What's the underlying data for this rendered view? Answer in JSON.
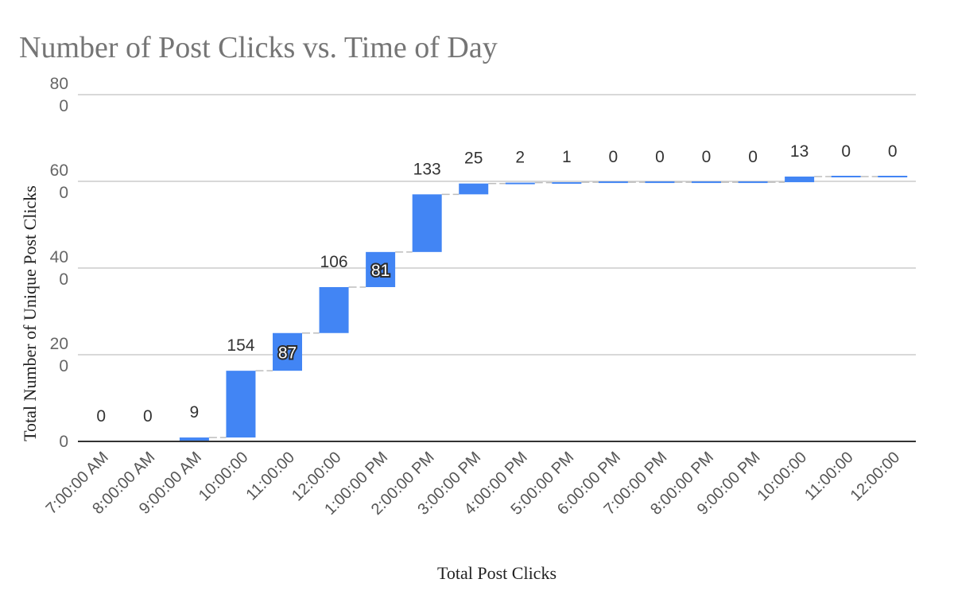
{
  "chart_data": {
    "type": "waterfall",
    "title": "Number of Post Clicks vs. Time of Day",
    "xlabel": "Total Post Clicks",
    "ylabel": "Total Number of Unique Post Clicks",
    "ylim": [
      0,
      800
    ],
    "y_ticks": [
      {
        "value": 0,
        "label": "0"
      },
      {
        "value": 200,
        "label": "20\n0"
      },
      {
        "value": 400,
        "label": "40\n0"
      },
      {
        "value": 600,
        "label": "60\n0"
      },
      {
        "value": 800,
        "label": "80\n0"
      }
    ],
    "grid": true,
    "categories": [
      "7:00:00 AM",
      "8:00:00 AM",
      "9:00:00 AM",
      "10:00:00",
      "11:00:00",
      "12:00:00",
      "1:00:00 PM",
      "2:00:00 PM",
      "3:00:00 PM",
      "4:00:00 PM",
      "5:00:00 PM",
      "6:00:00 PM",
      "7:00:00 PM",
      "8:00:00 PM",
      "9:00:00 PM",
      "10:00:00",
      "11:00:00",
      "12:00:00"
    ],
    "values": [
      0,
      0,
      9,
      154,
      87,
      106,
      81,
      133,
      25,
      2,
      1,
      0,
      0,
      0,
      0,
      13,
      0,
      0
    ],
    "labels": [
      "0",
      "0",
      "9",
      "154",
      "87",
      "106",
      "81",
      "133",
      "25",
      "2",
      "1",
      "0",
      "0",
      "0",
      "0",
      "13",
      "0",
      "0"
    ],
    "inside_labels": [
      4,
      6
    ],
    "bar_color": "#4285f4",
    "zero_bar_color": "#555555"
  }
}
